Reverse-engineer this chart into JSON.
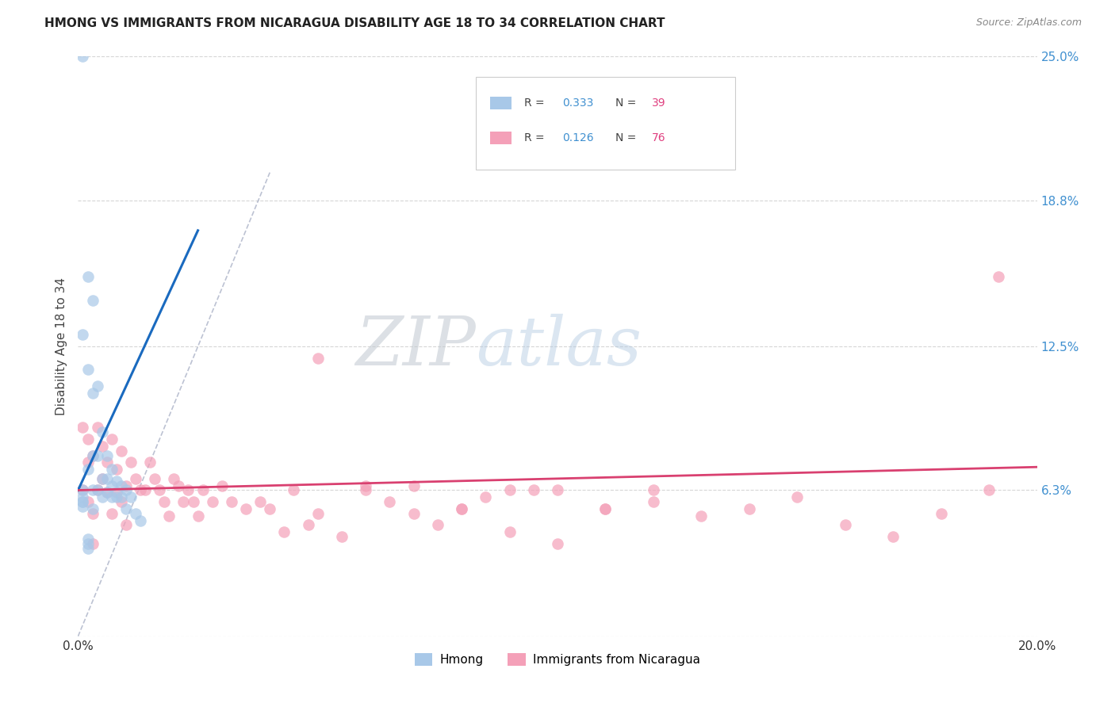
{
  "title": "HMONG VS IMMIGRANTS FROM NICARAGUA DISABILITY AGE 18 TO 34 CORRELATION CHART",
  "source": "Source: ZipAtlas.com",
  "ylabel_label": "Disability Age 18 to 34",
  "x_min": 0.0,
  "x_max": 0.2,
  "y_min": 0.0,
  "y_max": 0.25,
  "hmong_color": "#a8c8e8",
  "nicaragua_color": "#f4a0b8",
  "hmong_line_color": "#1a6abf",
  "nicaragua_line_color": "#d94070",
  "diagonal_color": "#b8b8c8",
  "legend_r1": "0.333",
  "legend_n1": "39",
  "legend_r2": "0.126",
  "legend_n2": "76",
  "r_color": "#4090d0",
  "n_color": "#e04080",
  "hmong_x": [
    0.001,
    0.001,
    0.001,
    0.002,
    0.002,
    0.002,
    0.003,
    0.003,
    0.003,
    0.003,
    0.004,
    0.004,
    0.004,
    0.005,
    0.005,
    0.005,
    0.006,
    0.006,
    0.006,
    0.007,
    0.007,
    0.007,
    0.008,
    0.008,
    0.009,
    0.009,
    0.01,
    0.01,
    0.011,
    0.012,
    0.013,
    0.001,
    0.002,
    0.001,
    0.002,
    0.003,
    0.001,
    0.001,
    0.002
  ],
  "hmong_y": [
    0.25,
    0.13,
    0.058,
    0.155,
    0.115,
    0.072,
    0.145,
    0.105,
    0.078,
    0.063,
    0.108,
    0.078,
    0.063,
    0.088,
    0.068,
    0.06,
    0.078,
    0.068,
    0.062,
    0.072,
    0.065,
    0.06,
    0.067,
    0.06,
    0.065,
    0.06,
    0.063,
    0.055,
    0.06,
    0.053,
    0.05,
    0.056,
    0.04,
    0.06,
    0.042,
    0.055,
    0.063,
    0.058,
    0.038
  ],
  "nic_x": [
    0.001,
    0.001,
    0.002,
    0.002,
    0.003,
    0.003,
    0.004,
    0.004,
    0.005,
    0.005,
    0.006,
    0.006,
    0.007,
    0.007,
    0.008,
    0.008,
    0.009,
    0.009,
    0.01,
    0.01,
    0.011,
    0.012,
    0.013,
    0.014,
    0.015,
    0.016,
    0.017,
    0.018,
    0.019,
    0.02,
    0.021,
    0.022,
    0.023,
    0.024,
    0.025,
    0.026,
    0.028,
    0.03,
    0.032,
    0.035,
    0.038,
    0.04,
    0.043,
    0.045,
    0.048,
    0.05,
    0.055,
    0.06,
    0.065,
    0.07,
    0.075,
    0.08,
    0.085,
    0.09,
    0.095,
    0.1,
    0.11,
    0.12,
    0.13,
    0.14,
    0.15,
    0.16,
    0.17,
    0.18,
    0.19,
    0.192,
    0.05,
    0.06,
    0.07,
    0.08,
    0.09,
    0.1,
    0.11,
    0.12,
    0.002,
    0.003
  ],
  "nic_y": [
    0.09,
    0.063,
    0.085,
    0.058,
    0.078,
    0.053,
    0.09,
    0.063,
    0.082,
    0.068,
    0.075,
    0.062,
    0.085,
    0.053,
    0.072,
    0.062,
    0.08,
    0.058,
    0.065,
    0.048,
    0.075,
    0.068,
    0.063,
    0.063,
    0.075,
    0.068,
    0.063,
    0.058,
    0.052,
    0.068,
    0.065,
    0.058,
    0.063,
    0.058,
    0.052,
    0.063,
    0.058,
    0.065,
    0.058,
    0.055,
    0.058,
    0.055,
    0.045,
    0.063,
    0.048,
    0.053,
    0.043,
    0.063,
    0.058,
    0.053,
    0.048,
    0.055,
    0.06,
    0.045,
    0.063,
    0.04,
    0.055,
    0.058,
    0.052,
    0.055,
    0.06,
    0.048,
    0.043,
    0.053,
    0.063,
    0.155,
    0.12,
    0.065,
    0.065,
    0.055,
    0.063,
    0.063,
    0.055,
    0.063,
    0.075,
    0.04
  ],
  "hmong_line_x0": 0.0,
  "hmong_line_y0": 0.063,
  "hmong_line_x1": 0.025,
  "hmong_line_y1": 0.175,
  "nic_line_x0": 0.0,
  "nic_line_y0": 0.063,
  "nic_line_x1": 0.2,
  "nic_line_y1": 0.073
}
